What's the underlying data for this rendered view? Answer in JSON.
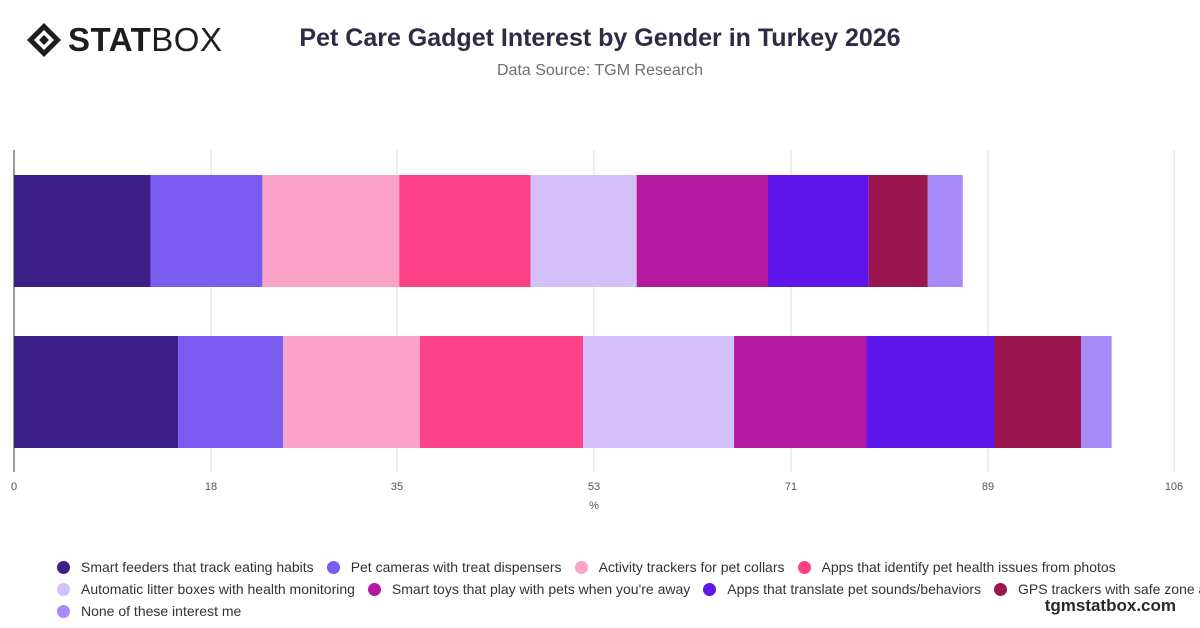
{
  "header": {
    "logo_text_bold": "STAT",
    "logo_text_light": "BOX",
    "title": "Pet Care Gadget Interest by Gender in Turkey 2026",
    "subtitle": "Data Source: TGM Research"
  },
  "footer": {
    "site": "tgmstatbox.com"
  },
  "chart_data": {
    "type": "bar",
    "orientation": "horizontal",
    "stacked": true,
    "title": "Pet Care Gadget Interest by Gender in Turkey 2026",
    "xlabel": "%",
    "ylabel": "",
    "xlim": [
      0,
      106
    ],
    "xticks": [
      0,
      18,
      35,
      53,
      71,
      89,
      106
    ],
    "categories": [
      "",
      ""
    ],
    "grid": true,
    "legend_position": "bottom",
    "series": [
      {
        "name": "Smart feeders that track eating habits",
        "color": "#3b1f86",
        "values": [
          12.5,
          15
        ]
      },
      {
        "name": "Pet cameras with treat dispensers",
        "color": "#7b5cf0",
        "values": [
          10.2,
          9.6
        ]
      },
      {
        "name": "Activity trackers for pet collars",
        "color": "#fba3c6",
        "values": [
          12.5,
          12.5
        ]
      },
      {
        "name": "Apps that identify pet health issues from photos",
        "color": "#fd4187",
        "values": [
          12,
          14.9
        ]
      },
      {
        "name": "Automatic litter boxes with health monitoring",
        "color": "#d5c1fa",
        "values": [
          9.7,
          13.8
        ]
      },
      {
        "name": "Smart toys that play with pets when you're away",
        "color": "#b31aa0",
        "values": [
          12,
          12.1
        ]
      },
      {
        "name": "Apps that translate pet sounds/behaviors",
        "color": "#5f16ea",
        "values": [
          9.2,
          11.7
        ]
      },
      {
        "name": "GPS trackers with safe zone alerts",
        "color": "#9b154e",
        "values": [
          5.4,
          7.9
        ]
      },
      {
        "name": "None of these interest me",
        "color": "#a98bf7",
        "values": [
          3.2,
          2.8
        ]
      }
    ]
  }
}
